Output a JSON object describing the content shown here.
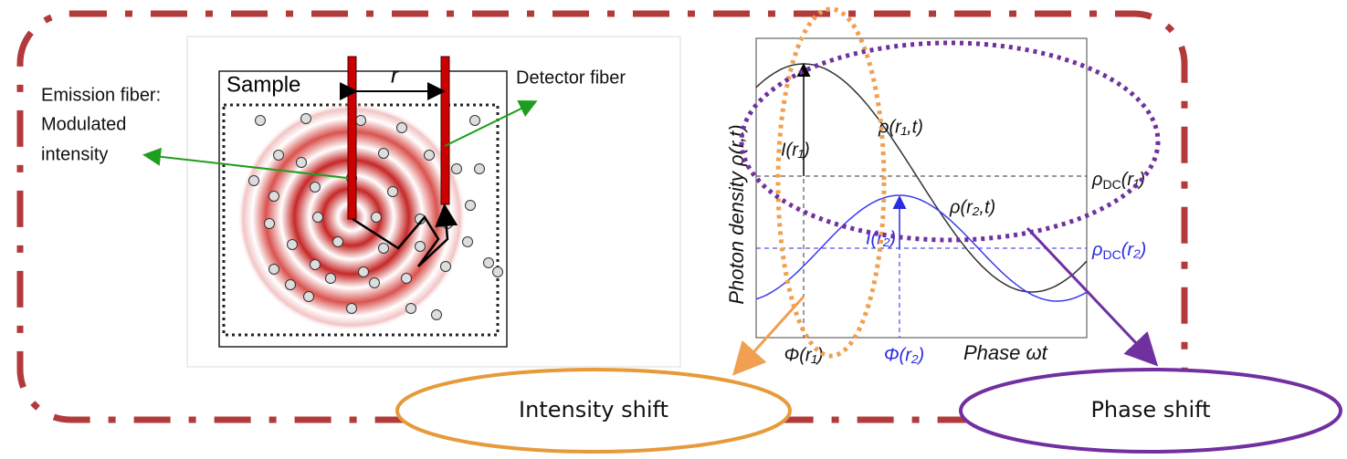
{
  "left_panel": {
    "emission_label": [
      "Emission fiber:",
      "Modulated",
      "intensity"
    ],
    "sample_label": "Sample",
    "distance_label": "r",
    "detector_label": "Detector fiber"
  },
  "right_panel": {
    "y_axis_label": "Photon density ρ(r,t)",
    "curve1_label": "ρ(r₁,t)",
    "curve2_label": "ρ(r₂,t)",
    "amplitude1_label": "I(r₁)",
    "amplitude2_label": "I(r₂)",
    "dc1_label": {
      "base": "ρ",
      "sub": "DC",
      "tail": "(r₁)"
    },
    "dc2_label": {
      "base": "ρ",
      "sub": "DC",
      "tail": "(r₂)"
    },
    "phase1_label": "Φ(r₁)",
    "phase2_label": "Φ(r₂)",
    "x_axis_label": "Phase ωt"
  },
  "callouts": {
    "intensity_shift": "Intensity shift",
    "phase_shift": "Phase shift"
  }
}
